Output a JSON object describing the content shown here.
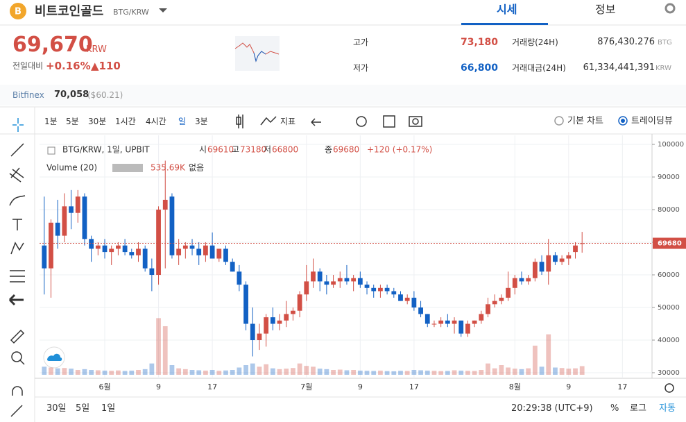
{
  "header": {
    "name": "비트코인골드",
    "pair": "BTG/KRW",
    "tabs": [
      "시세",
      "정보"
    ]
  },
  "price": {
    "value": "69,670",
    "unit": "KRW",
    "change_label": "전일대비",
    "change_pct": "+0.16%",
    "change_amt": "▲110"
  },
  "stats": [
    {
      "label": "고가",
      "value": "73,180"
    },
    {
      "label": "저가",
      "value": "66,800"
    },
    {
      "label": "거래량(24H)",
      "value": "876,430.276",
      "unit": "BTG"
    },
    {
      "label": "거래대금(24H)",
      "value": "61,334,441,391",
      "unit": "KRW"
    }
  ],
  "bitfinex": {
    "label": "Bitfinex",
    "value": "70,058",
    "sub": "($60.21)"
  },
  "toolbar": {
    "intervals": [
      "1분",
      "5분",
      "30분",
      "1시간",
      "4시간",
      "일",
      "3분"
    ],
    "indicator": "지표",
    "chart_modes": [
      "기본 차트",
      "트레이딩뷰"
    ]
  },
  "chart_data": {
    "type": "candlestick",
    "symbol": "BTG/KRW, 1일, UPBIT",
    "ohlc_labels": [
      "시",
      "고",
      "저",
      "종"
    ],
    "change": "+120 (+0.17%)",
    "up_color": "#d24f45",
    "down_color": "#1261c4",
    "open": [
      69000,
      62000,
      76000,
      72000,
      81000,
      79000,
      84000,
      71000,
      68000,
      69000,
      67000,
      68000,
      69000,
      67000,
      66000,
      68000,
      62000,
      60000,
      80000,
      84000,
      66000,
      68000,
      69000,
      68000,
      66000,
      69000,
      65000,
      68000,
      64000,
      61000,
      57000,
      45000,
      40000,
      42000,
      47000,
      45000,
      46000,
      48000,
      49000,
      54000,
      58000,
      61000,
      58000,
      57000,
      58000,
      59000,
      58000,
      59000,
      57000,
      56000,
      55000,
      56000,
      55000,
      54000,
      52000,
      53000,
      50000,
      48000,
      45000,
      45000,
      46000,
      45000,
      46000,
      42000,
      45000,
      46000,
      48000,
      51000,
      52000,
      53000,
      56000,
      59000,
      58000,
      59000,
      64000,
      61000,
      66000,
      64000,
      65000,
      67000,
      69610
    ],
    "high": [
      84000,
      77000,
      83000,
      85000,
      86000,
      86000,
      85000,
      72000,
      70000,
      71000,
      69000,
      70000,
      71000,
      68000,
      70000,
      69000,
      65000,
      81000,
      95000,
      85000,
      71000,
      70000,
      71000,
      70000,
      70000,
      73000,
      68000,
      69000,
      65000,
      63000,
      58000,
      50000,
      45000,
      48000,
      50000,
      48000,
      52000,
      50000,
      55000,
      63000,
      65000,
      62000,
      60000,
      60000,
      61000,
      63000,
      60000,
      61000,
      58000,
      57000,
      57000,
      57000,
      56000,
      55000,
      54000,
      55000,
      52000,
      48000,
      46000,
      47000,
      48000,
      47000,
      46000,
      46000,
      46000,
      49000,
      53000,
      54000,
      54000,
      61000,
      60000,
      61000,
      60000,
      65000,
      66000,
      71000,
      67000,
      66000,
      67000,
      70000,
      73180
    ],
    "low": [
      54000,
      53000,
      68000,
      70000,
      74000,
      76000,
      69000,
      64000,
      66000,
      65000,
      63000,
      66000,
      66000,
      65000,
      64000,
      61000,
      55000,
      57000,
      62000,
      65000,
      63000,
      65000,
      66000,
      63000,
      64000,
      65000,
      64000,
      63000,
      61000,
      55000,
      43000,
      35000,
      37000,
      38000,
      43000,
      43000,
      44000,
      46000,
      47000,
      52000,
      56000,
      55000,
      54000,
      56000,
      56000,
      57000,
      55000,
      56000,
      54000,
      53000,
      53000,
      54000,
      53000,
      52000,
      51000,
      49000,
      47000,
      44000,
      44000,
      44000,
      44000,
      42000,
      41000,
      41000,
      44000,
      45000,
      47000,
      50000,
      51000,
      52000,
      54000,
      57000,
      57000,
      58000,
      60000,
      57000,
      63000,
      63000,
      63000,
      65000,
      66800
    ],
    "close": [
      62000,
      76000,
      72000,
      81000,
      79000,
      84000,
      71000,
      68000,
      69000,
      67000,
      68000,
      69000,
      67000,
      66000,
      68000,
      62000,
      60000,
      80000,
      83000,
      66000,
      68000,
      69000,
      68000,
      66000,
      69000,
      65000,
      68000,
      64000,
      61000,
      57000,
      45000,
      40000,
      42000,
      47000,
      45000,
      46000,
      48000,
      49000,
      54000,
      58000,
      61000,
      58000,
      57000,
      58000,
      59000,
      58000,
      59000,
      57000,
      56000,
      55000,
      56000,
      55000,
      54000,
      52000,
      53000,
      50000,
      48000,
      45000,
      45000,
      46000,
      45000,
      46000,
      42000,
      45000,
      46000,
      48000,
      51000,
      52000,
      53000,
      56000,
      59000,
      58000,
      59000,
      64000,
      61000,
      66000,
      64000,
      65000,
      66000,
      69000,
      69680
    ],
    "volume": {
      "name": "Volume (20)",
      "last_label": "535.69K",
      "mode": "없음",
      "lim": [
        0,
        6000000
      ],
      "values": [
        500000,
        450000,
        400000,
        420000,
        380000,
        300000,
        350000,
        300000,
        280000,
        260000,
        250000,
        270000,
        240000,
        260000,
        300000,
        350000,
        700000,
        3500000,
        3000000,
        600000,
        400000,
        350000,
        300000,
        280000,
        260000,
        300000,
        250000,
        270000,
        300000,
        450000,
        600000,
        700000,
        500000,
        650000,
        400000,
        350000,
        380000,
        420000,
        700000,
        550000,
        500000,
        380000,
        350000,
        300000,
        320000,
        280000,
        300000,
        260000,
        250000,
        240000,
        260000,
        230000,
        220000,
        250000,
        240000,
        300000,
        280000,
        260000,
        250000,
        230000,
        240000,
        280000,
        260000,
        250000,
        240000,
        300000,
        700000,
        400000,
        600000,
        450000,
        380000,
        350000,
        400000,
        1800000,
        500000,
        2500000,
        450000,
        420000,
        380000,
        400000,
        535690
      ]
    },
    "xlim": [
      -0.7,
      90.4
    ],
    "xticks": [
      {
        "value": 9,
        "label": "6월"
      },
      {
        "value": 17,
        "label": "9"
      },
      {
        "value": 25,
        "label": "17"
      },
      {
        "value": 39,
        "label": "7월"
      },
      {
        "value": 47,
        "label": "9"
      },
      {
        "value": 55,
        "label": "17"
      },
      {
        "value": 70,
        "label": "8월"
      },
      {
        "value": 78,
        "label": "9"
      },
      {
        "value": 86,
        "label": "17"
      }
    ],
    "ylim": [
      28300,
      102770
    ],
    "yticks": [
      30000,
      40000,
      50000,
      60000,
      70000,
      80000,
      90000,
      100000
    ],
    "grid": true
  },
  "footer": {
    "ranges": [
      "30일",
      "5일",
      "1일"
    ],
    "time": "20:29:38 (UTC+9)",
    "options": [
      "%",
      "로그",
      "자동"
    ]
  }
}
